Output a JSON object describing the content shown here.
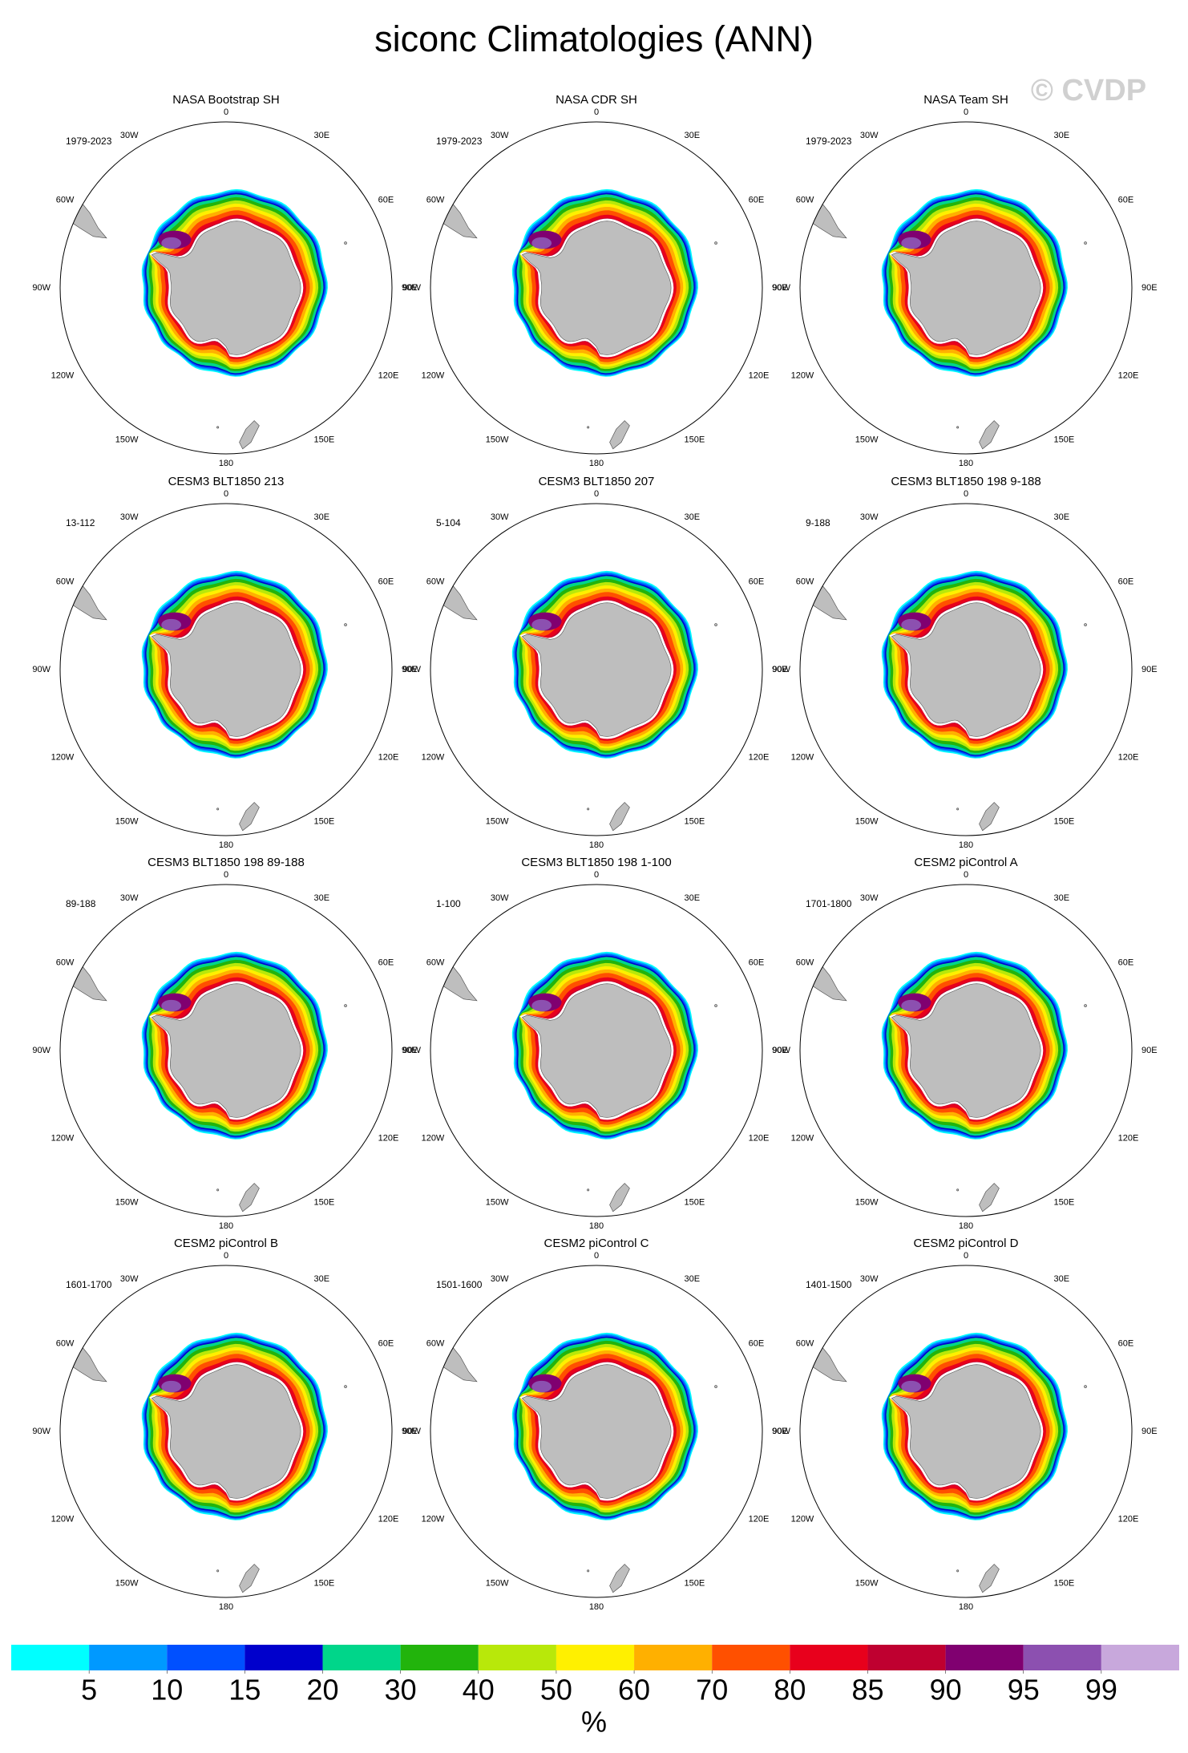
{
  "title": "siconc Climatologies (ANN)",
  "watermark": "© CVDP",
  "panels": [
    {
      "title": "NASA Bootstrap SH",
      "period": "1979-2023"
    },
    {
      "title": "NASA CDR SH",
      "period": "1979-2023"
    },
    {
      "title": "NASA Team SH",
      "period": "1979-2023"
    },
    {
      "title": "CESM3 BLT1850 213",
      "period": "13-112"
    },
    {
      "title": "CESM3 BLT1850 207",
      "period": "5-104"
    },
    {
      "title": "CESM3 BLT1850 198 9-188",
      "period": "9-188"
    },
    {
      "title": "CESM3 BLT1850 198 89-188",
      "period": "89-188"
    },
    {
      "title": "CESM3 BLT1850 198 1-100",
      "period": "1-100"
    },
    {
      "title": "CESM2 piControl A",
      "period": "1701-1800"
    },
    {
      "title": "CESM2 piControl B",
      "period": "1601-1700"
    },
    {
      "title": "CESM2 piControl C",
      "period": "1501-1600"
    },
    {
      "title": "CESM2 piControl D",
      "period": "1401-1500"
    }
  ],
  "lon_labels": [
    "0",
    "30E",
    "60E",
    "90E",
    "120E",
    "150E",
    "180",
    "150W",
    "120W",
    "90W",
    "60W",
    "30W"
  ],
  "colorbar": {
    "levels": [
      5,
      10,
      15,
      20,
      30,
      40,
      50,
      60,
      70,
      80,
      85,
      90,
      95,
      99
    ],
    "colors": [
      "#00ffff",
      "#0099ff",
      "#0050ff",
      "#0000cc",
      "#00d68a",
      "#22b40c",
      "#b8e80a",
      "#fff000",
      "#ffb000",
      "#ff5000",
      "#e8001c",
      "#bf0030",
      "#800070",
      "#8c50b0",
      "#c8a8dc"
    ],
    "unit": "%"
  }
}
